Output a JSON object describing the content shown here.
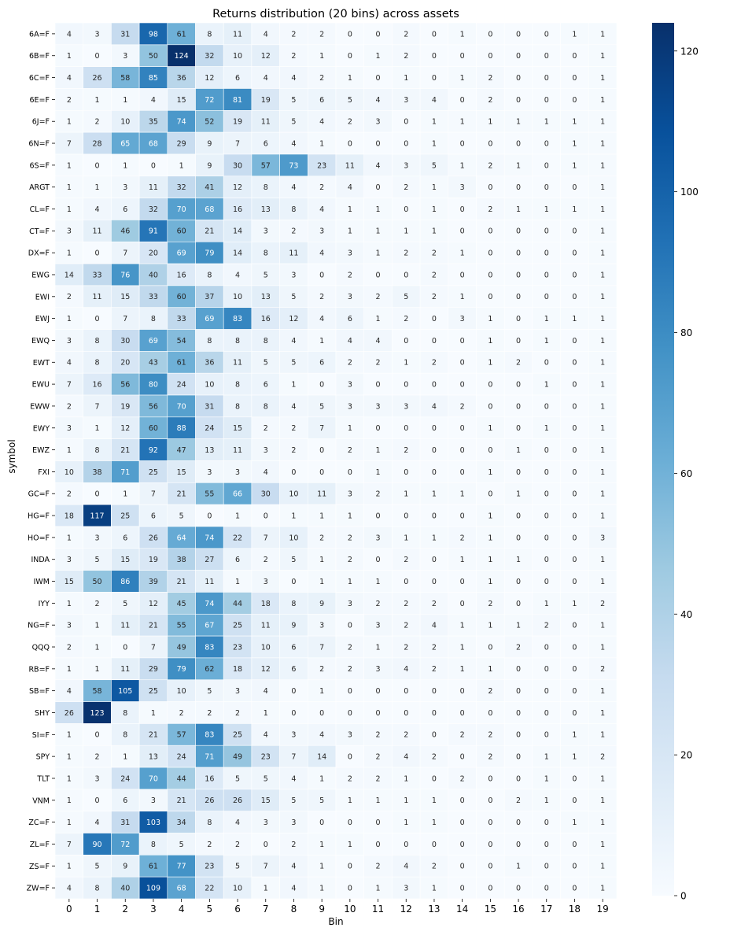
{
  "chart_data": {
    "type": "heatmap",
    "title": "Returns distribution (20 bins) across assets",
    "xlabel": "Bin",
    "ylabel": "symbol",
    "colormap": "Blues",
    "vmin": 0,
    "vmax": 124,
    "colorbar_ticks": [
      0,
      20,
      40,
      60,
      80,
      100,
      120
    ],
    "x": [
      0,
      1,
      2,
      3,
      4,
      5,
      6,
      7,
      8,
      9,
      10,
      11,
      12,
      13,
      14,
      15,
      16,
      17,
      18,
      19
    ],
    "y": [
      "6A=F",
      "6B=F",
      "6C=F",
      "6E=F",
      "6J=F",
      "6N=F",
      "6S=F",
      "ARGT",
      "CL=F",
      "CT=F",
      "DX=F",
      "EWG",
      "EWI",
      "EWJ",
      "EWQ",
      "EWT",
      "EWU",
      "EWW",
      "EWY",
      "EWZ",
      "FXI",
      "GC=F",
      "HG=F",
      "HO=F",
      "INDA",
      "IWM",
      "IYY",
      "NG=F",
      "QQQ",
      "RB=F",
      "SB=F",
      "SHY",
      "SI=F",
      "SPY",
      "TLT",
      "VNM",
      "ZC=F",
      "ZL=F",
      "ZS=F",
      "ZW=F"
    ],
    "values": [
      [
        4,
        3,
        31,
        98,
        61,
        8,
        11,
        4,
        2,
        2,
        0,
        0,
        2,
        0,
        1,
        0,
        0,
        0,
        1,
        1
      ],
      [
        1,
        0,
        3,
        50,
        124,
        32,
        10,
        12,
        2,
        1,
        0,
        1,
        2,
        0,
        0,
        0,
        0,
        0,
        0,
        1
      ],
      [
        4,
        26,
        58,
        85,
        36,
        12,
        6,
        4,
        4,
        2,
        1,
        0,
        1,
        0,
        1,
        2,
        0,
        0,
        0,
        1
      ],
      [
        2,
        1,
        1,
        4,
        15,
        72,
        81,
        19,
        5,
        6,
        5,
        4,
        3,
        4,
        0,
        2,
        0,
        0,
        0,
        1
      ],
      [
        1,
        2,
        10,
        35,
        74,
        52,
        19,
        11,
        5,
        4,
        2,
        3,
        0,
        1,
        1,
        1,
        1,
        1,
        1,
        1
      ],
      [
        7,
        28,
        65,
        68,
        29,
        9,
        7,
        6,
        4,
        1,
        0,
        0,
        0,
        1,
        0,
        0,
        0,
        0,
        1,
        1
      ],
      [
        1,
        0,
        1,
        0,
        1,
        9,
        30,
        57,
        73,
        23,
        11,
        4,
        3,
        5,
        1,
        2,
        1,
        0,
        1,
        1
      ],
      [
        1,
        1,
        3,
        11,
        32,
        41,
        12,
        8,
        4,
        2,
        4,
        0,
        2,
        1,
        3,
        0,
        0,
        0,
        0,
        1
      ],
      [
        1,
        4,
        6,
        32,
        70,
        68,
        16,
        13,
        8,
        4,
        1,
        1,
        0,
        1,
        0,
        2,
        1,
        1,
        1,
        1
      ],
      [
        3,
        11,
        46,
        91,
        60,
        21,
        14,
        3,
        2,
        3,
        1,
        1,
        1,
        1,
        0,
        0,
        0,
        0,
        0,
        1
      ],
      [
        1,
        0,
        7,
        20,
        69,
        79,
        14,
        8,
        11,
        4,
        3,
        1,
        2,
        2,
        1,
        0,
        0,
        0,
        0,
        1
      ],
      [
        14,
        33,
        76,
        40,
        16,
        8,
        4,
        5,
        3,
        0,
        2,
        0,
        0,
        2,
        0,
        0,
        0,
        0,
        0,
        1
      ],
      [
        2,
        11,
        15,
        33,
        60,
        37,
        10,
        13,
        5,
        2,
        3,
        2,
        5,
        2,
        1,
        0,
        0,
        0,
        0,
        1
      ],
      [
        1,
        0,
        7,
        8,
        33,
        69,
        83,
        16,
        12,
        4,
        6,
        1,
        2,
        0,
        3,
        1,
        0,
        1,
        1,
        1
      ],
      [
        3,
        8,
        30,
        69,
        54,
        8,
        8,
        8,
        4,
        1,
        4,
        4,
        0,
        0,
        0,
        1,
        0,
        1,
        0,
        1
      ],
      [
        4,
        8,
        20,
        43,
        61,
        36,
        11,
        5,
        5,
        6,
        2,
        2,
        1,
        2,
        0,
        1,
        2,
        0,
        0,
        1
      ],
      [
        7,
        16,
        56,
        80,
        24,
        10,
        8,
        6,
        1,
        0,
        3,
        0,
        0,
        0,
        0,
        0,
        0,
        1,
        0,
        1
      ],
      [
        2,
        7,
        19,
        56,
        70,
        31,
        8,
        8,
        4,
        5,
        3,
        3,
        3,
        4,
        2,
        0,
        0,
        0,
        0,
        1
      ],
      [
        3,
        1,
        12,
        60,
        88,
        24,
        15,
        2,
        2,
        7,
        1,
        0,
        0,
        0,
        0,
        1,
        0,
        1,
        0,
        1
      ],
      [
        1,
        8,
        21,
        92,
        47,
        13,
        11,
        3,
        2,
        0,
        2,
        1,
        2,
        0,
        0,
        0,
        1,
        0,
        0,
        1
      ],
      [
        10,
        38,
        71,
        25,
        15,
        3,
        3,
        4,
        0,
        0,
        0,
        1,
        0,
        0,
        0,
        1,
        0,
        0,
        0,
        1
      ],
      [
        2,
        0,
        1,
        7,
        21,
        55,
        66,
        30,
        10,
        11,
        3,
        2,
        1,
        1,
        1,
        0,
        1,
        0,
        0,
        1
      ],
      [
        18,
        117,
        25,
        6,
        5,
        0,
        1,
        0,
        1,
        1,
        1,
        0,
        0,
        0,
        0,
        1,
        0,
        0,
        0,
        1
      ],
      [
        1,
        3,
        6,
        26,
        64,
        74,
        22,
        7,
        10,
        2,
        2,
        3,
        1,
        1,
        2,
        1,
        0,
        0,
        0,
        3
      ],
      [
        3,
        5,
        15,
        19,
        38,
        27,
        6,
        2,
        5,
        1,
        2,
        0,
        2,
        0,
        1,
        1,
        1,
        0,
        0,
        1
      ],
      [
        15,
        50,
        86,
        39,
        21,
        11,
        1,
        3,
        0,
        1,
        1,
        1,
        0,
        0,
        0,
        1,
        0,
        0,
        0,
        1
      ],
      [
        1,
        2,
        5,
        12,
        45,
        74,
        44,
        18,
        8,
        9,
        3,
        2,
        2,
        2,
        0,
        2,
        0,
        1,
        1,
        2
      ],
      [
        3,
        1,
        11,
        21,
        55,
        67,
        25,
        11,
        9,
        3,
        0,
        3,
        2,
        4,
        1,
        1,
        1,
        2,
        0,
        1
      ],
      [
        2,
        1,
        0,
        7,
        49,
        83,
        23,
        10,
        6,
        7,
        2,
        1,
        2,
        2,
        1,
        0,
        2,
        0,
        0,
        1
      ],
      [
        1,
        1,
        11,
        29,
        79,
        62,
        18,
        12,
        6,
        2,
        2,
        3,
        4,
        2,
        1,
        1,
        0,
        0,
        0,
        2
      ],
      [
        4,
        58,
        105,
        25,
        10,
        5,
        3,
        4,
        0,
        1,
        0,
        0,
        0,
        0,
        0,
        2,
        0,
        0,
        0,
        1
      ],
      [
        26,
        123,
        8,
        1,
        2,
        2,
        2,
        1,
        0,
        0,
        0,
        0,
        0,
        0,
        0,
        0,
        0,
        0,
        0,
        1
      ],
      [
        1,
        0,
        8,
        21,
        57,
        83,
        25,
        4,
        3,
        4,
        3,
        2,
        2,
        0,
        2,
        2,
        0,
        0,
        1,
        1
      ],
      [
        1,
        2,
        1,
        13,
        24,
        71,
        49,
        23,
        7,
        14,
        0,
        2,
        4,
        2,
        0,
        2,
        0,
        1,
        1,
        2
      ],
      [
        1,
        3,
        24,
        70,
        44,
        16,
        5,
        5,
        4,
        1,
        2,
        2,
        1,
        0,
        2,
        0,
        0,
        1,
        0,
        1
      ],
      [
        1,
        0,
        6,
        3,
        21,
        26,
        26,
        15,
        5,
        5,
        1,
        1,
        1,
        1,
        0,
        0,
        2,
        1,
        0,
        1
      ],
      [
        1,
        4,
        31,
        103,
        34,
        8,
        4,
        3,
        3,
        0,
        0,
        0,
        1,
        1,
        0,
        0,
        0,
        0,
        1,
        1
      ],
      [
        7,
        90,
        72,
        8,
        5,
        2,
        2,
        0,
        2,
        1,
        1,
        0,
        0,
        0,
        0,
        0,
        0,
        0,
        0,
        1
      ],
      [
        1,
        5,
        9,
        61,
        77,
        23,
        5,
        7,
        4,
        1,
        0,
        2,
        4,
        2,
        0,
        0,
        1,
        0,
        0,
        1
      ],
      [
        4,
        8,
        40,
        109,
        68,
        22,
        10,
        1,
        4,
        1,
        0,
        1,
        3,
        1,
        0,
        0,
        0,
        0,
        0,
        1
      ]
    ]
  }
}
